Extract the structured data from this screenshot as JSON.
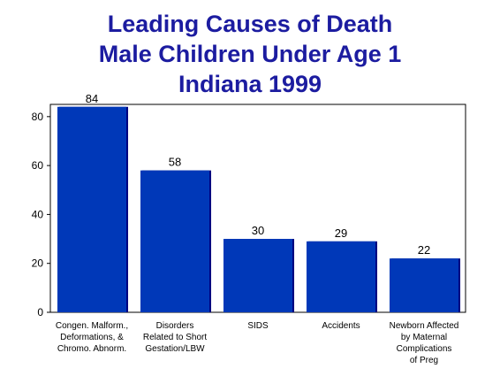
{
  "chart_data": {
    "type": "bar",
    "title_lines": [
      "Leading Causes of Death",
      "Male Children Under Age 1",
      "Indiana 1999"
    ],
    "categories": [
      [
        "Congen. Malform.,",
        "Deformations, &",
        "Chromo. Abnorm."
      ],
      [
        "Disorders",
        "Related to Short",
        "Gestation/LBW"
      ],
      [
        "SIDS"
      ],
      [
        "Accidents"
      ],
      [
        "Newborn Affected",
        "by Maternal",
        "Complications",
        "of Preg"
      ]
    ],
    "values": [
      84,
      58,
      30,
      29,
      22
    ],
    "ylim": [
      0,
      85
    ],
    "yticks": [
      0,
      20,
      40,
      60,
      80
    ],
    "grid": false,
    "legend": "none",
    "colors": {
      "bar": "#0038b8",
      "bar_edge": "#000080",
      "title": "#1c1ca0"
    }
  }
}
